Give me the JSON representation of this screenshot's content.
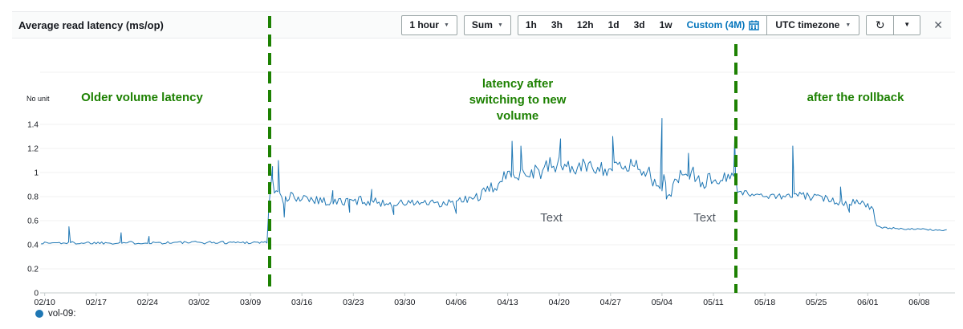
{
  "header": {
    "title": "Average read latency (ms/op)",
    "period_dropdown": "1 hour",
    "stat_dropdown": "Sum",
    "range_buttons": [
      "1h",
      "3h",
      "12h",
      "1d",
      "3d",
      "1w"
    ],
    "custom_range": "Custom (4M)",
    "timezone_dropdown": "UTC timezone"
  },
  "icons": {
    "caret": "▼",
    "refresh": "↻",
    "close": "✕"
  },
  "chart_data": {
    "type": "line",
    "title": "Average read latency (ms/op)",
    "ylabel": "No unit",
    "xlabel": "",
    "ylim": [
      0,
      1.5
    ],
    "yticks": [
      0,
      0.2,
      0.4,
      0.6,
      0.8,
      1,
      1.2,
      1.4
    ],
    "x_tick_labels": [
      "02/10",
      "02/17",
      "02/24",
      "03/02",
      "03/09",
      "03/16",
      "03/23",
      "03/30",
      "04/06",
      "04/13",
      "04/20",
      "04/27",
      "05/04",
      "05/11",
      "05/18",
      "05/25",
      "06/01",
      "06/08"
    ],
    "days_per_tick": 7,
    "x_start_day": -0.5,
    "x_end_day": 122.8,
    "grid": true,
    "legend_position": "bottom-left",
    "series": [
      {
        "name": "vol-09:",
        "color": "#1f77b4",
        "seed": 1337,
        "samples_per_day": 4,
        "anchors": [
          [
            -0.5,
            0.415,
            0.012
          ],
          [
            30.3,
            0.42,
            0.012
          ],
          [
            30.6,
            0.88,
            0.07
          ],
          [
            31.5,
            0.9,
            0.09
          ],
          [
            32.3,
            0.74,
            0.06
          ],
          [
            33.5,
            0.8,
            0.045
          ],
          [
            36,
            0.79,
            0.04
          ],
          [
            39,
            0.75,
            0.04
          ],
          [
            43,
            0.77,
            0.04
          ],
          [
            47,
            0.74,
            0.03
          ],
          [
            51,
            0.75,
            0.035
          ],
          [
            54,
            0.73,
            0.035
          ],
          [
            56.5,
            0.76,
            0.04
          ],
          [
            58,
            0.78,
            0.04
          ],
          [
            60,
            0.83,
            0.05
          ],
          [
            62,
            0.92,
            0.06
          ],
          [
            64,
            1.02,
            0.08
          ],
          [
            66,
            1.0,
            0.08
          ],
          [
            68,
            1.03,
            0.08
          ],
          [
            70,
            1.07,
            0.08
          ],
          [
            72,
            1.03,
            0.07
          ],
          [
            74,
            1.06,
            0.06
          ],
          [
            76,
            1.04,
            0.07
          ],
          [
            78,
            1.03,
            0.07
          ],
          [
            80,
            1.07,
            0.07
          ],
          [
            82,
            1.02,
            0.06
          ],
          [
            83.3,
            0.86,
            0.05
          ],
          [
            84.3,
            0.9,
            0.1
          ],
          [
            85.2,
            0.85,
            0.06
          ],
          [
            86.5,
            0.98,
            0.08
          ],
          [
            88,
            1.0,
            0.08
          ],
          [
            90,
            0.92,
            0.07
          ],
          [
            92,
            0.96,
            0.08
          ],
          [
            93.8,
            0.98,
            0.09
          ],
          [
            94.4,
            0.84,
            0.025
          ],
          [
            97,
            0.81,
            0.02
          ],
          [
            100,
            0.8,
            0.025
          ],
          [
            103,
            0.81,
            0.03
          ],
          [
            105,
            0.79,
            0.03
          ],
          [
            107,
            0.78,
            0.035
          ],
          [
            109,
            0.74,
            0.03
          ],
          [
            110.5,
            0.77,
            0.03
          ],
          [
            112.8,
            0.7,
            0.025
          ],
          [
            113.1,
            0.55,
            0.01
          ],
          [
            114,
            0.54,
            0.008
          ],
          [
            122.8,
            0.52,
            0.006
          ]
        ],
        "spikes": [
          [
            3.3,
            0.55
          ],
          [
            10.4,
            0.5
          ],
          [
            14.2,
            0.47
          ],
          [
            31.0,
            1.05
          ],
          [
            31.8,
            1.1
          ],
          [
            32.6,
            0.63
          ],
          [
            39.2,
            0.85
          ],
          [
            41.5,
            0.67
          ],
          [
            44.5,
            0.86
          ],
          [
            47.5,
            0.65
          ],
          [
            56,
            0.66
          ],
          [
            63.6,
            1.26
          ],
          [
            64.8,
            1.22
          ],
          [
            70.2,
            1.28
          ],
          [
            77.3,
            1.3
          ],
          [
            84.0,
            1.45
          ],
          [
            84.6,
            0.78
          ],
          [
            87.6,
            1.16
          ],
          [
            93.9,
            1.3
          ],
          [
            101.8,
            1.22
          ],
          [
            108.3,
            0.88
          ],
          [
            109.5,
            0.67
          ]
        ]
      }
    ],
    "annotations": {
      "vlines": [
        {
          "id": "switch-to-new-volume",
          "day": 30.6,
          "color": "#1d8102"
        },
        {
          "id": "rollback",
          "day": 94.0,
          "color": "#1d8102"
        }
      ],
      "labels": [
        {
          "text": "Older volume latency",
          "color": "#1d8102"
        },
        {
          "text": "latency after\nswitching to new\nvolume",
          "color": "#1d8102"
        },
        {
          "text": "after the rollback",
          "color": "#1d8102"
        },
        {
          "text": "Text",
          "color": "#545b64"
        },
        {
          "text": "Text",
          "color": "#545b64"
        }
      ]
    }
  }
}
